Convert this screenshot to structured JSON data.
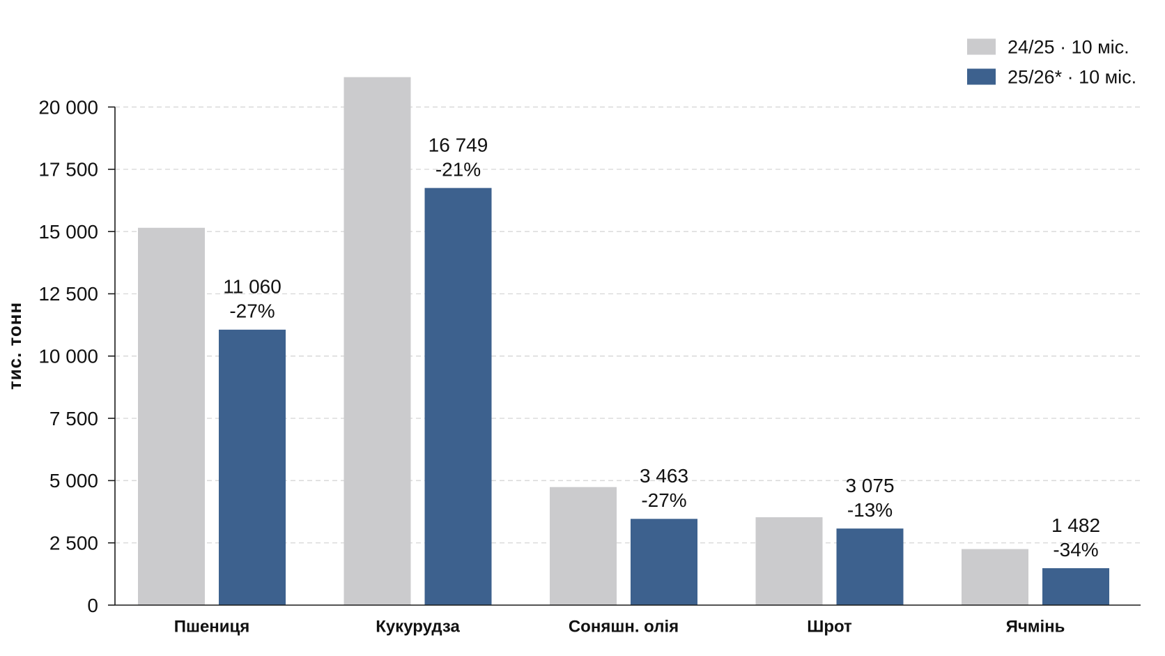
{
  "chart_data": {
    "type": "bar",
    "ylabel": "тис. тонн",
    "categories": [
      "Пшениця",
      "Кукурудза",
      "Соняшн. олія",
      "Шрот",
      "Ячмінь"
    ],
    "series": [
      {
        "name": "24/25 · 10 міс.",
        "color": "#cbcbcd",
        "values": [
          15150,
          21200,
          4740,
          3530,
          2250
        ]
      },
      {
        "name": "25/26* · 10 міс.",
        "color": "#3d618e",
        "values": [
          11060,
          16749,
          3463,
          3075,
          1482
        ],
        "data_labels": [
          "11 060",
          "16 749",
          "3 463",
          "3 075",
          "1 482"
        ],
        "change_labels": [
          "-27%",
          "-21%",
          "-27%",
          "-13%",
          "-34%"
        ]
      }
    ],
    "ylim": [
      0,
      20000
    ],
    "y_ticks": [
      0,
      2500,
      5000,
      7500,
      10000,
      12500,
      15000,
      17500,
      20000
    ],
    "y_tick_labels": [
      "0",
      "2 500",
      "5 000",
      "7 500",
      "10 000",
      "12 500",
      "15 000",
      "17 500",
      "20 000"
    ],
    "grid": true,
    "legend": "top-right"
  }
}
